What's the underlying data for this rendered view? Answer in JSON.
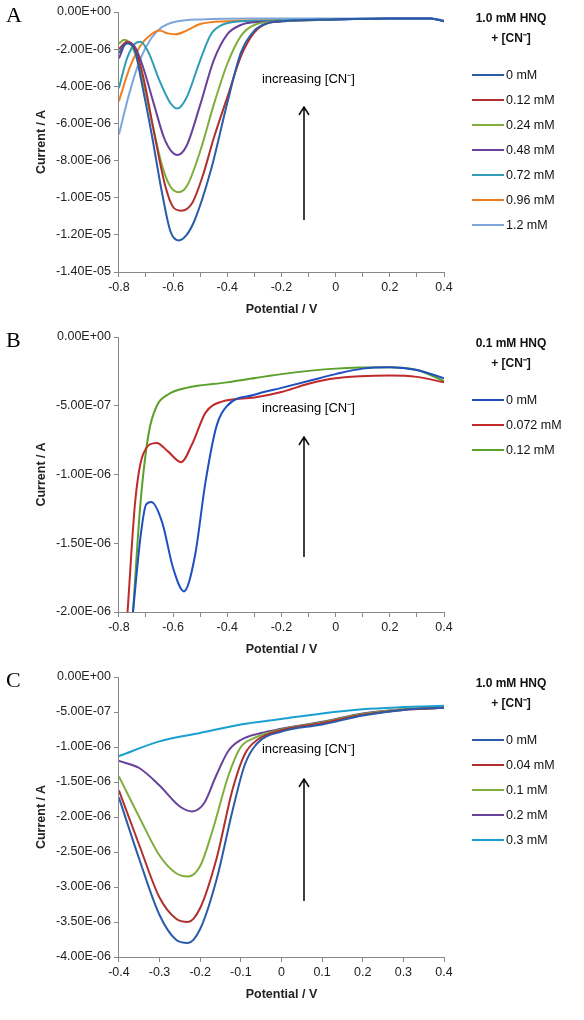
{
  "chart_data": [
    {
      "type": "line",
      "xlabel": "Potential / V",
      "ylabel": "Current / A",
      "legend_title": "1.0 mM HNQ + [CN⁻]",
      "legend": "right",
      "grid": false,
      "marker": "none",
      "line_style": "solid",
      "annotations": [
        "A",
        "increasing [CN⁻]"
      ],
      "xlim": [
        -0.8,
        0.4
      ],
      "xticks": [
        -0.8,
        {
          "value": -0.7,
          "label": null
        },
        -0.6,
        {
          "value": -0.5,
          "label": null
        },
        -0.4,
        {
          "value": -0.3,
          "label": null
        },
        -0.2,
        {
          "value": -0.1,
          "label": null
        },
        0,
        {
          "value": 0.1,
          "label": null
        },
        0.2,
        {
          "value": 0.3,
          "label": null
        },
        0.4
      ],
      "ylim": [
        -1.4e-05,
        0
      ],
      "yticks": [
        {
          "value": 0,
          "label": "0.00E+00"
        },
        {
          "value": -2e-06,
          "label": "-2.00E-06"
        },
        {
          "value": -4e-06,
          "label": "-4.00E-06"
        },
        {
          "value": -6e-06,
          "label": "-6.00E-06"
        },
        {
          "value": -8e-06,
          "label": "-8.00E-06"
        },
        {
          "value": -1e-05,
          "label": "-1.00E-05"
        },
        {
          "value": -1.2e-05,
          "label": "-1.20E-05"
        },
        {
          "value": -1.4e-05,
          "label": "-1.40E-05"
        }
      ],
      "series": [
        {
          "name": "0 mM",
          "color": "#2a5caa",
          "x": [
            -0.8,
            -0.77,
            -0.74,
            -0.72,
            -0.68,
            -0.64,
            -0.61,
            -0.58,
            -0.55,
            -0.52,
            -0.46,
            -0.4,
            -0.35,
            -0.3,
            -0.25,
            -0.2,
            0,
            0.2,
            0.35,
            0.4
          ],
          "values": [
            -2.2e-06,
            -1.7e-06,
            -2.1e-06,
            -3.5e-06,
            -6.5e-06,
            -9.8e-06,
            -1.18e-05,
            -1.23e-05,
            -1.2e-05,
            -1.12e-05,
            -8.5e-06,
            -4.9e-06,
            -2.2e-06,
            -1e-06,
            -6e-07,
            -5e-07,
            -4e-07,
            -3.5e-07,
            -3.5e-07,
            -5e-07
          ]
        },
        {
          "name": "0.12 mM",
          "color": "#b03030",
          "x": [
            -0.8,
            -0.77,
            -0.74,
            -0.71,
            -0.67,
            -0.63,
            -0.6,
            -0.57,
            -0.53,
            -0.49,
            -0.45,
            -0.4,
            -0.35,
            -0.3,
            -0.25,
            -0.2
          ],
          "values": [
            -2e-06,
            -1.6e-06,
            -2e-06,
            -3.5e-06,
            -6.5e-06,
            -9.3e-06,
            -1.05e-05,
            -1.07e-05,
            -1.03e-05,
            -8.8e-06,
            -6.8e-06,
            -4.6e-06,
            -2.4e-06,
            -1.1e-06,
            -6e-07,
            -5e-07
          ]
        },
        {
          "name": "0.24 mM",
          "color": "#80ad3c",
          "x": [
            -0.8,
            -0.78,
            -0.75,
            -0.72,
            -0.68,
            -0.64,
            -0.61,
            -0.58,
            -0.55,
            -0.5,
            -0.45,
            -0.4,
            -0.35,
            -0.3,
            -0.2,
            0
          ],
          "values": [
            -1.7e-06,
            -1.5e-06,
            -1.9e-06,
            -3.2e-06,
            -5.8e-06,
            -8.3e-06,
            -9.4e-06,
            -9.7e-06,
            -9.4e-06,
            -7.5e-06,
            -5e-06,
            -2.8e-06,
            -1.3e-06,
            -7e-07,
            -5e-07,
            -4e-07
          ]
        },
        {
          "name": "0.48 mM",
          "color": "#66429a",
          "x": [
            -0.8,
            -0.77,
            -0.74,
            -0.71,
            -0.67,
            -0.63,
            -0.585,
            -0.55,
            -0.5,
            -0.45,
            -0.4,
            -0.35,
            -0.3,
            -0.2,
            0,
            0.2,
            0.35,
            0.4
          ],
          "values": [
            -2.5e-06,
            -1.6e-06,
            -1.9e-06,
            -3e-06,
            -5e-06,
            -6.9e-06,
            -7.7e-06,
            -7.2e-06,
            -5e-06,
            -2.6e-06,
            -1.2e-06,
            -7e-07,
            -5.5e-07,
            -5e-07,
            -4e-07,
            -3.5e-07,
            -3.5e-07,
            -5e-07
          ]
        },
        {
          "name": "0.72 mM",
          "color": "#2e9db5",
          "x": [
            -0.8,
            -0.77,
            -0.74,
            -0.72,
            -0.69,
            -0.65,
            -0.61,
            -0.585,
            -0.55,
            -0.5,
            -0.46,
            -0.42,
            -0.35,
            -0.2,
            0,
            0.2,
            0.35,
            0.4
          ],
          "values": [
            -4.1e-06,
            -2.5e-06,
            -1.7e-06,
            -1.6e-06,
            -2.2e-06,
            -3.7e-06,
            -4.9e-06,
            -5.2e-06,
            -4.6e-06,
            -2.6e-06,
            -1.2e-06,
            -7e-07,
            -5e-07,
            -4.5e-07,
            -4e-07,
            -3.5e-07,
            -3.5e-07,
            -5e-07
          ]
        },
        {
          "name": "0.96 mM",
          "color": "#f07d1e",
          "x": [
            -0.8,
            -0.76,
            -0.72,
            -0.68,
            -0.65,
            -0.62,
            -0.59,
            -0.55,
            -0.5,
            -0.4,
            -0.2
          ],
          "values": [
            -4.8e-06,
            -3e-06,
            -1.8e-06,
            -1.2e-06,
            -1e-06,
            -1.15e-06,
            -1.2e-06,
            -1e-06,
            -6.5e-07,
            -5e-07,
            -4.5e-07
          ]
        },
        {
          "name": "1.2 mM",
          "color": "#7fa6dc",
          "x": [
            -0.8,
            -0.76,
            -0.72,
            -0.68,
            -0.64,
            -0.6,
            -0.5,
            -0.2,
            0,
            0.2,
            0.35,
            0.4
          ],
          "values": [
            -6.6e-06,
            -4.3e-06,
            -2.5e-06,
            -1.4e-06,
            -8e-07,
            -5.5e-07,
            -4e-07,
            -3.5e-07,
            -3.5e-07,
            -3.5e-07,
            -3.5e-07,
            -4.5e-07
          ]
        }
      ]
    },
    {
      "type": "line",
      "xlabel": "Potential / V",
      "ylabel": "Current / A",
      "legend_title": "0.1 mM HNQ + [CN⁻]",
      "legend": "right",
      "grid": false,
      "marker": "none",
      "line_style": "solid",
      "annotations": [
        "B",
        "increasing [CN⁻]"
      ],
      "xlim": [
        -0.8,
        0.4
      ],
      "xticks": [
        -0.8,
        {
          "value": -0.7,
          "label": null
        },
        -0.6,
        {
          "value": -0.5,
          "label": null
        },
        -0.4,
        {
          "value": -0.3,
          "label": null
        },
        -0.2,
        {
          "value": -0.1,
          "label": null
        },
        0,
        {
          "value": 0.1,
          "label": null
        },
        0.2,
        {
          "value": 0.3,
          "label": null
        },
        0.4
      ],
      "ylim": [
        -2e-06,
        0
      ],
      "yticks": [
        {
          "value": 0,
          "label": "0.00E+00"
        },
        {
          "value": -5e-07,
          "label": "-5.00E-07"
        },
        {
          "value": -1e-06,
          "label": "-1.00E-06"
        },
        {
          "value": -1.5e-06,
          "label": "-1.50E-06"
        },
        {
          "value": -2e-06,
          "label": "-2.00E-06"
        }
      ],
      "series": [
        {
          "name": "0 mM",
          "color": "#1f4fc0",
          "x": [
            -0.748,
            -0.72,
            -0.7,
            -0.68,
            -0.64,
            -0.6,
            -0.56,
            -0.52,
            -0.48,
            -0.44,
            -0.4,
            -0.3,
            -0.2,
            -0.1,
            0,
            0.1,
            0.2,
            0.3,
            0.4
          ],
          "values": [
            -2e-06,
            -1.45e-06,
            -1.22e-06,
            -1.2e-06,
            -1.35e-06,
            -1.68e-06,
            -1.85e-06,
            -1.6e-06,
            -1.05e-06,
            -6.5e-07,
            -5e-07,
            -4.2e-07,
            -3.7e-07,
            -3.2e-07,
            -2.7e-07,
            -2.3e-07,
            -2.2e-07,
            -2.4e-07,
            -3e-07
          ]
        },
        {
          "name": "0.072 mM",
          "color": "#c02a2a",
          "x": [
            -0.768,
            -0.74,
            -0.71,
            -0.66,
            -0.62,
            -0.57,
            -0.53,
            -0.48,
            -0.42,
            -0.3,
            -0.2,
            -0.1,
            0,
            0.2,
            0.3,
            0.4
          ],
          "values": [
            -2e-06,
            -1.2e-06,
            -8.5e-07,
            -7.7e-07,
            -8.3e-07,
            -9.1e-07,
            -7.8e-07,
            -5.5e-07,
            -4.7e-07,
            -4.4e-07,
            -4e-07,
            -3.4e-07,
            -3e-07,
            -2.8e-07,
            -2.9e-07,
            -3.3e-07
          ]
        },
        {
          "name": "0.12 mM",
          "color": "#5aa02a",
          "x": [
            -0.748,
            -0.72,
            -0.69,
            -0.66,
            -0.62,
            -0.55,
            -0.4,
            -0.2,
            0,
            0.2,
            0.3,
            0.4
          ],
          "values": [
            -2e-06,
            -1.2e-06,
            -7e-07,
            -5e-07,
            -4.2e-07,
            -3.7e-07,
            -3.3e-07,
            -2.7e-07,
            -2.3e-07,
            -2.2e-07,
            -2.4e-07,
            -3.2e-07
          ]
        }
      ]
    },
    {
      "type": "line",
      "xlabel": "Potential / V",
      "ylabel": "Current / A",
      "legend_title": "1.0 mM HNQ + [CN⁻]",
      "legend": "right",
      "grid": false,
      "marker": "none",
      "line_style": "solid",
      "annotations": [
        "C",
        "increasing [CN⁻]"
      ],
      "xlim": [
        -0.4,
        0.4
      ],
      "xticks": [
        -0.4,
        -0.3,
        -0.2,
        -0.1,
        0,
        0.1,
        0.2,
        0.3,
        0.4
      ],
      "ylim": [
        -4e-06,
        0
      ],
      "yticks": [
        {
          "value": 0,
          "label": "0.00E+00"
        },
        {
          "value": -5e-07,
          "label": "-5.00E-07"
        },
        {
          "value": -1e-06,
          "label": "-1.00E-06"
        },
        {
          "value": -1.5e-06,
          "label": "-1.50E-06"
        },
        {
          "value": -2e-06,
          "label": "-2.00E-06"
        },
        {
          "value": -2.5e-06,
          "label": "-2.50E-06"
        },
        {
          "value": -3e-06,
          "label": "-3.00E-06"
        },
        {
          "value": -3.5e-06,
          "label": "-3.50E-06"
        },
        {
          "value": -4e-06,
          "label": "-4.00E-06"
        }
      ],
      "series": [
        {
          "name": "0 mM",
          "color": "#2a5caa",
          "x": [
            -0.4,
            -0.35,
            -0.3,
            -0.26,
            -0.23,
            -0.2,
            -0.16,
            -0.12,
            -0.09,
            -0.06,
            0,
            0.1,
            0.2,
            0.3,
            0.4
          ],
          "values": [
            -1.72e-06,
            -2.6e-06,
            -3.4e-06,
            -3.75e-06,
            -3.8e-06,
            -3.6e-06,
            -2.9e-06,
            -1.9e-06,
            -1.25e-06,
            -9.5e-07,
            -7.8e-07,
            -6.8e-07,
            -5.5e-07,
            -4.7e-07,
            -4.4e-07
          ]
        },
        {
          "name": "0.04 mM",
          "color": "#b03030",
          "x": [
            -0.4,
            -0.35,
            -0.3,
            -0.26,
            -0.23,
            -0.2,
            -0.16,
            -0.12,
            -0.09,
            -0.06,
            0,
            0.1,
            0.2,
            0.3,
            0.4
          ],
          "values": [
            -1.62e-06,
            -2.4e-06,
            -3.15e-06,
            -3.45e-06,
            -3.5e-06,
            -3.3e-06,
            -2.6e-06,
            -1.6e-06,
            -1.1e-06,
            -9e-07,
            -7.6e-07,
            -6.6e-07,
            -5.4e-07,
            -4.7e-07,
            -4.4e-07
          ]
        },
        {
          "name": "0.1 mM",
          "color": "#80ad3c",
          "x": [
            -0.4,
            -0.35,
            -0.3,
            -0.26,
            -0.23,
            -0.2,
            -0.17,
            -0.13,
            -0.1,
            -0.07,
            0,
            0.1,
            0.2,
            0.3,
            0.4
          ],
          "values": [
            -1.42e-06,
            -2e-06,
            -2.55e-06,
            -2.8e-06,
            -2.85e-06,
            -2.7e-06,
            -2.2e-06,
            -1.4e-06,
            -1e-06,
            -8.8e-07,
            -7.5e-07,
            -6.5e-07,
            -5.3e-07,
            -4.6e-07,
            -4.4e-07
          ]
        },
        {
          "name": "0.2 mM",
          "color": "#66429a",
          "x": [
            -0.4,
            -0.35,
            -0.3,
            -0.25,
            -0.22,
            -0.19,
            -0.16,
            -0.13,
            -0.1,
            -0.05,
            0,
            0.1,
            0.2,
            0.3,
            0.4
          ],
          "values": [
            -1.2e-06,
            -1.3e-06,
            -1.55e-06,
            -1.85e-06,
            -1.92e-06,
            -1.8e-06,
            -1.4e-06,
            -1.05e-06,
            -9e-07,
            -8e-07,
            -7.4e-07,
            -6.4e-07,
            -5.2e-07,
            -4.6e-07,
            -4.4e-07
          ]
        },
        {
          "name": "0.3 mM",
          "color": "#1aa0d0",
          "x": [
            -0.4,
            -0.3,
            -0.2,
            -0.1,
            0,
            0.1,
            0.2,
            0.3,
            0.4
          ],
          "values": [
            -1.13e-06,
            -9.2e-07,
            -8e-07,
            -6.8e-07,
            -6e-07,
            -5.2e-07,
            -4.6e-07,
            -4.3e-07,
            -4.1e-07
          ]
        }
      ]
    }
  ]
}
